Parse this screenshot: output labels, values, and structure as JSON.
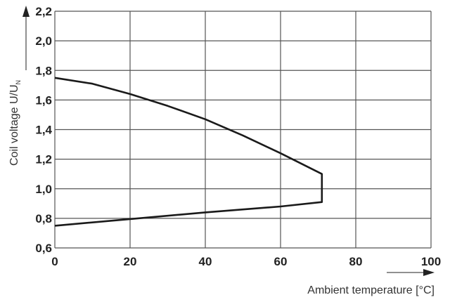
{
  "chart_data": {
    "type": "line",
    "title": "",
    "xlabel": "Ambient temperature [°C]",
    "ylabel": "Coil voltage U/U",
    "ylabel_subscript": "N",
    "xlim": [
      0,
      100
    ],
    "ylim": [
      0.6,
      2.2
    ],
    "grid": true,
    "x_ticks": [
      0,
      20,
      40,
      60,
      80,
      100
    ],
    "x_tick_labels": [
      "0",
      "20",
      "40",
      "60",
      "80",
      "100"
    ],
    "y_ticks": [
      0.6,
      0.8,
      1.0,
      1.2,
      1.4,
      1.6,
      1.8,
      2.0,
      2.2
    ],
    "y_tick_labels": [
      "0,6",
      "0,8",
      "1,0",
      "1,2",
      "1,4",
      "1,6",
      "1,8",
      "2,0",
      "2,2"
    ],
    "series": [
      {
        "x": [
          0,
          10,
          20,
          30,
          40,
          50,
          60,
          71,
          71,
          60,
          40,
          20,
          0
        ],
        "y": [
          1.75,
          1.71,
          1.64,
          1.56,
          1.47,
          1.36,
          1.24,
          1.1,
          0.91,
          0.88,
          0.84,
          0.795,
          0.75
        ]
      }
    ],
    "line_color": "#1a1a1a",
    "grid_color": "#555555"
  }
}
